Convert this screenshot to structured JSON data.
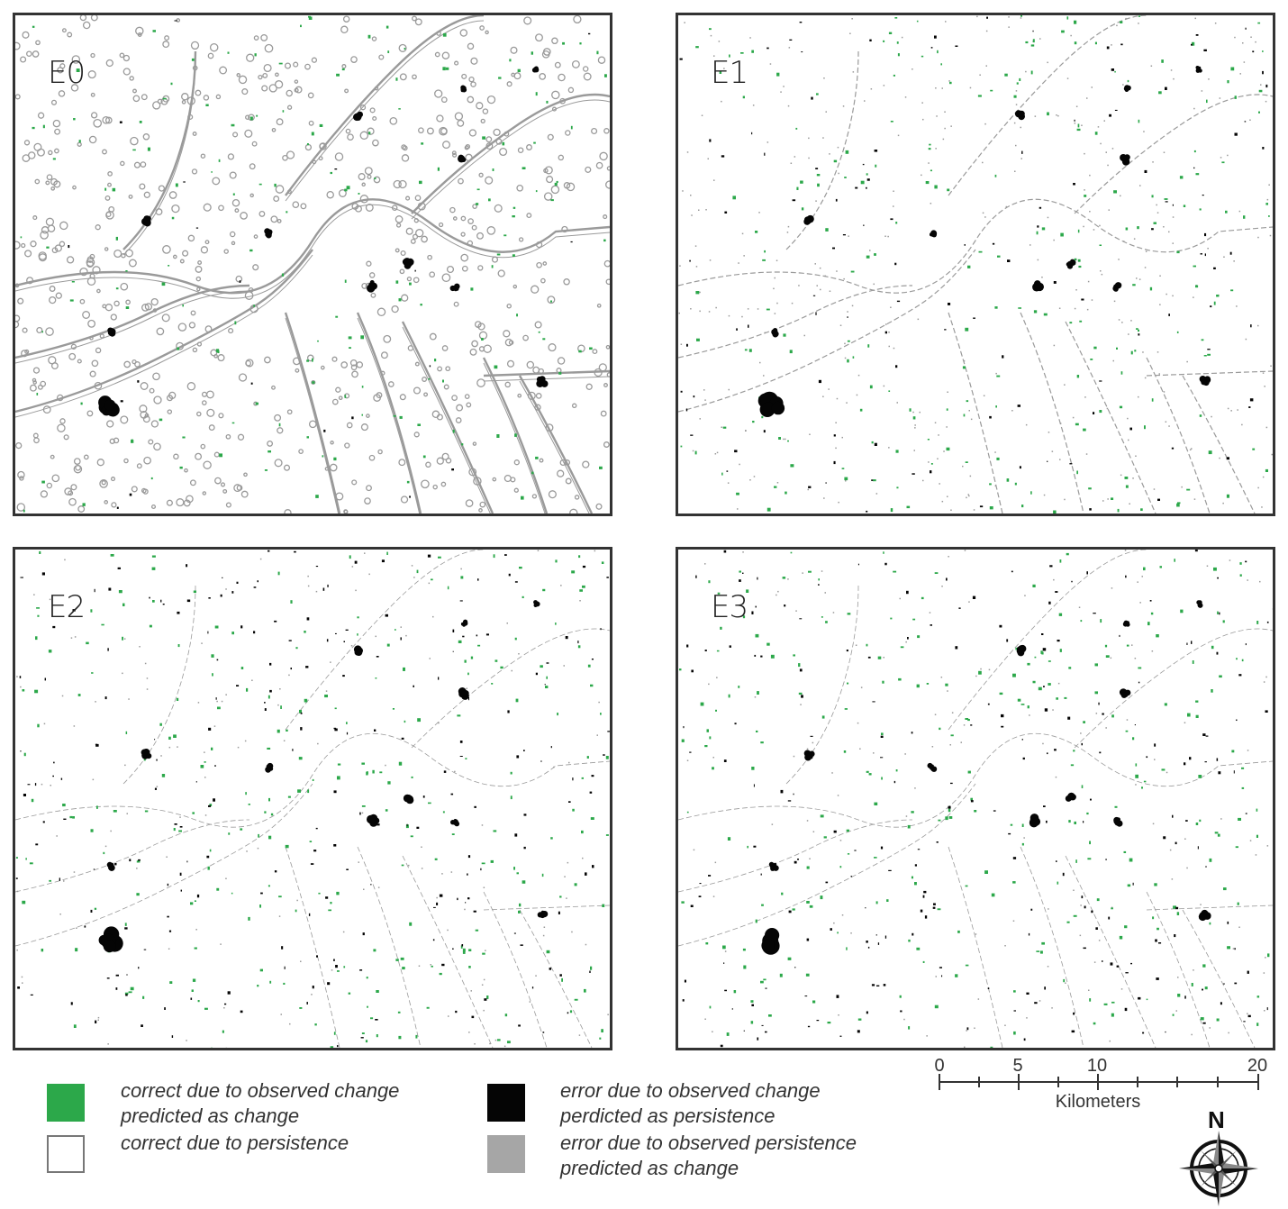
{
  "panels": [
    {
      "id": "p0",
      "label": "E0",
      "density": "high"
    },
    {
      "id": "p1",
      "label": "E1",
      "density": "medium"
    },
    {
      "id": "p2",
      "label": "E2",
      "density": "low"
    },
    {
      "id": "p3",
      "label": "E3",
      "density": "low"
    }
  ],
  "legend": {
    "items": [
      {
        "color": "#2ca84a",
        "line1": "correct due to observed change",
        "line2": "predicted as change"
      },
      {
        "color": "#ffffff",
        "line1": "correct due to persistence",
        "line2": ""
      },
      {
        "color": "#050505",
        "line1": "error due to observed change",
        "line2": "perdicted as persistence"
      },
      {
        "color": "#a6a6a6",
        "line1": "error due to observed persistence",
        "line2": "predicted as change"
      }
    ]
  },
  "scale_bar": {
    "ticks": [
      "0",
      "5",
      "10",
      "20"
    ],
    "unit": "Kilometers"
  },
  "north_arrow": {
    "letter": "N",
    "icon": "compass-rose-icon"
  },
  "colors": {
    "change": "#2ca84a",
    "miss": "#050505",
    "false_alarm": "#9a9a9a",
    "persistence": "#ffffff"
  }
}
